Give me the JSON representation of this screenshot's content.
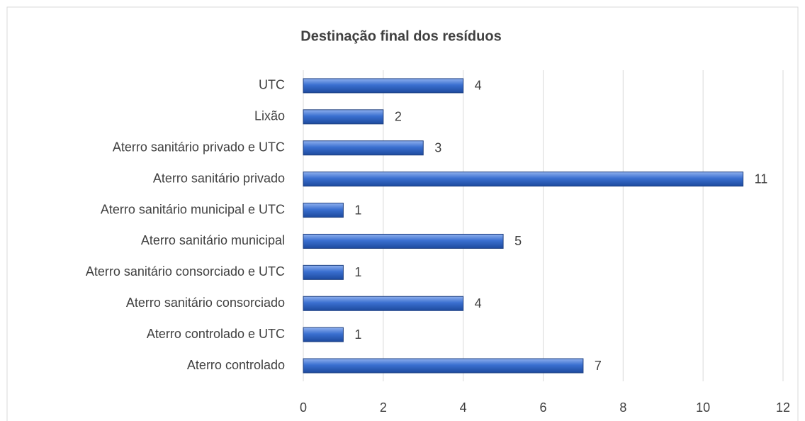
{
  "chart_data": {
    "type": "bar",
    "orientation": "horizontal",
    "title": "Destinação final dos resíduos",
    "categories": [
      "UTC",
      "Lixão",
      "Aterro sanitário privado e UTC",
      "Aterro sanitário privado",
      "Aterro sanitário municipal e UTC",
      "Aterro sanitário municipal",
      "Aterro sanitário consorciado e UTC",
      "Aterro sanitário consorciado",
      "Aterro controlado e UTC",
      "Aterro controlado"
    ],
    "values": [
      4,
      2,
      3,
      11,
      1,
      5,
      1,
      4,
      1,
      7
    ],
    "color": "#3a6fd0",
    "xlim": [
      0,
      12
    ],
    "xticks": [
      0,
      2,
      4,
      6,
      8,
      10,
      12
    ],
    "grid": true
  }
}
